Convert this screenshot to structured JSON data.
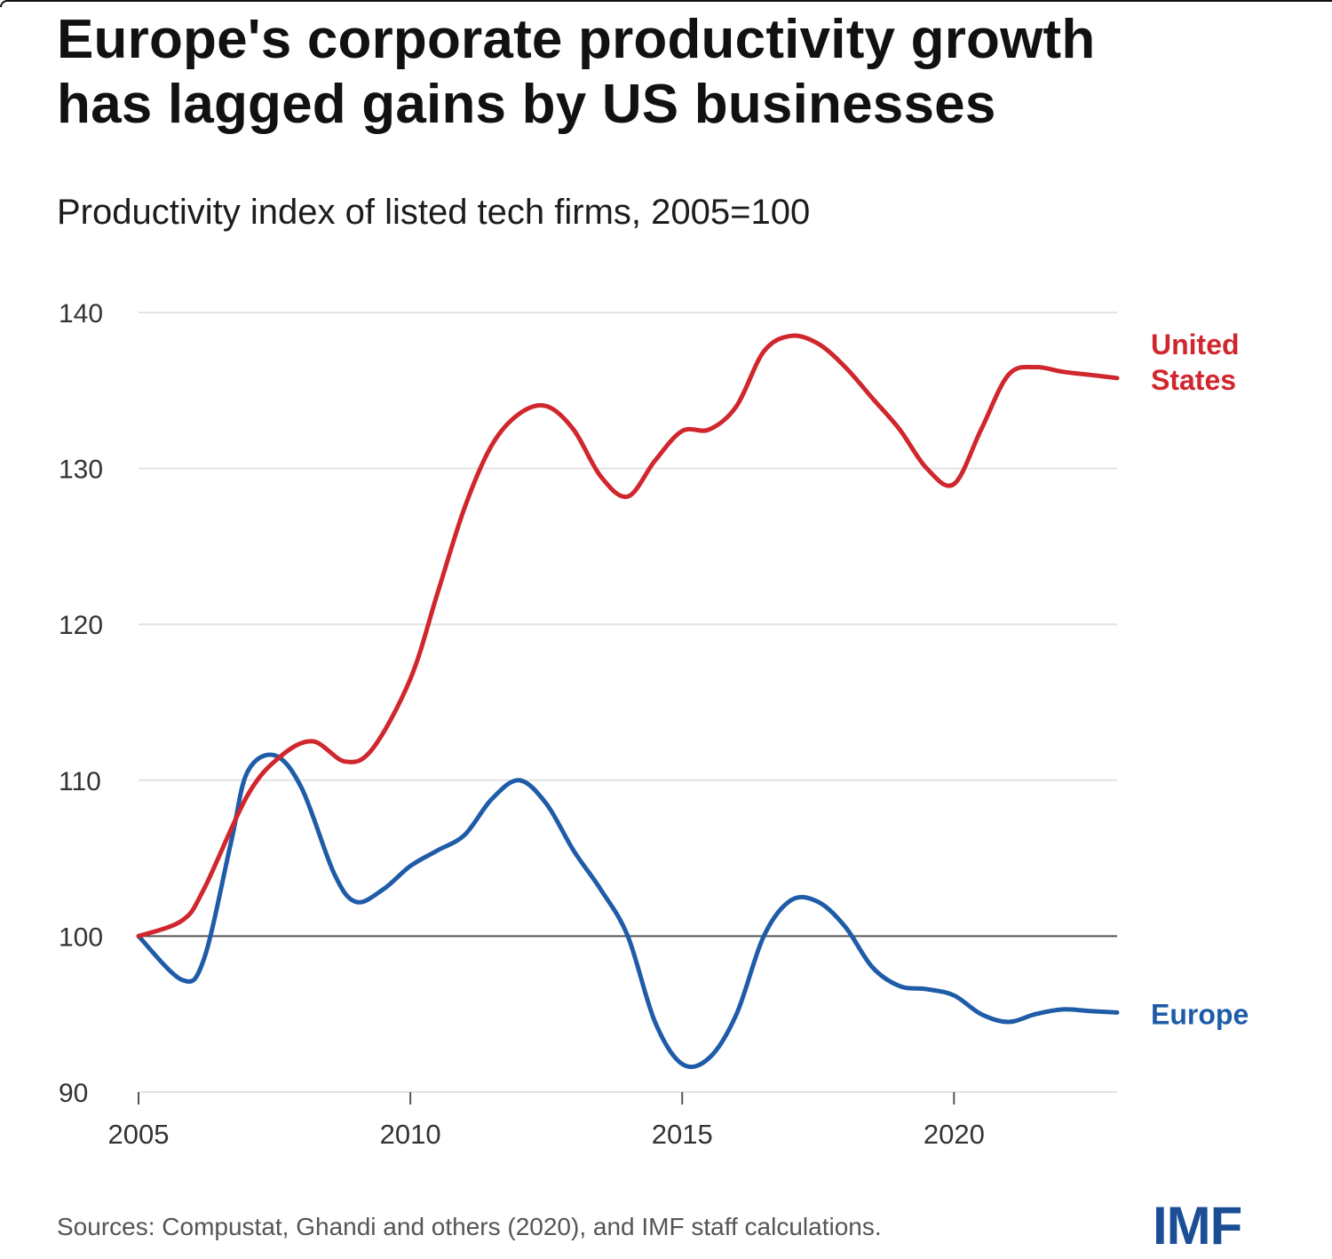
{
  "title_line1": "Europe's corporate productivity growth",
  "title_line2": "has lagged gains by US businesses",
  "subtitle": "Productivity index of listed tech firms, 2005=100",
  "source": "Sources: Compustat, Ghandi and others (2020), and IMF staff calculations.",
  "logo_text": "IMF",
  "chart_data": {
    "type": "line",
    "title": "Europe's corporate productivity growth has lagged gains by US businesses",
    "subtitle": "Productivity index of listed tech firms, 2005=100",
    "xlabel": "",
    "ylabel": "",
    "xlim": [
      2005,
      2023
    ],
    "ylim": [
      90,
      140
    ],
    "x_ticks": [
      2005,
      2010,
      2015,
      2020
    ],
    "y_ticks": [
      90,
      100,
      110,
      120,
      130,
      140
    ],
    "baseline": 100,
    "grid": true,
    "legend": "direct labels at right end of lines",
    "series": [
      {
        "name": "United States",
        "label_lines": [
          "United",
          "States"
        ],
        "color": "#d0262d",
        "x": [
          2005,
          2005.8,
          2006.2,
          2007,
          2007.6,
          2008.2,
          2008.8,
          2009.3,
          2010,
          2010.5,
          2011,
          2011.5,
          2012,
          2012.5,
          2013,
          2013.5,
          2014,
          2014.5,
          2015,
          2015.5,
          2016,
          2016.5,
          2017,
          2017.5,
          2018,
          2018.5,
          2019,
          2019.5,
          2020,
          2020.5,
          2021,
          2021.5,
          2022,
          2022.5,
          2023
        ],
        "values": [
          100,
          101,
          103,
          109,
          111.5,
          112.5,
          111.2,
          112,
          116.5,
          122,
          127.5,
          131.5,
          133.5,
          134,
          132.5,
          129.5,
          128.2,
          130.5,
          132.4,
          132.5,
          134,
          137.5,
          138.5,
          138,
          136.5,
          134.5,
          132.5,
          130,
          129,
          132.5,
          136,
          136.5,
          136.2,
          136,
          135.8
        ]
      },
      {
        "name": "Europe",
        "label_lines": [
          "Europe"
        ],
        "color": "#1f5ca8",
        "x": [
          2005,
          2005.8,
          2006.2,
          2006.7,
          2007,
          2007.5,
          2008,
          2008.6,
          2009,
          2009.5,
          2010,
          2010.5,
          2011,
          2011.5,
          2012,
          2012.5,
          2013,
          2013.5,
          2014,
          2014.5,
          2015,
          2015.5,
          2016,
          2016.5,
          2017,
          2017.5,
          2018,
          2018.5,
          2019,
          2019.5,
          2020,
          2020.5,
          2021,
          2021.5,
          2022,
          2022.5,
          2023
        ],
        "values": [
          100,
          97.2,
          98.5,
          106,
          110.5,
          111.6,
          109.5,
          104,
          102.2,
          103,
          104.5,
          105.5,
          106.5,
          108.8,
          110,
          108.5,
          105.5,
          103,
          100,
          94.5,
          91.8,
          92.2,
          95,
          100,
          102.3,
          102.2,
          100.6,
          98,
          96.8,
          96.6,
          96.2,
          95,
          94.5,
          95,
          95.3,
          95.2,
          95.1
        ]
      }
    ]
  }
}
